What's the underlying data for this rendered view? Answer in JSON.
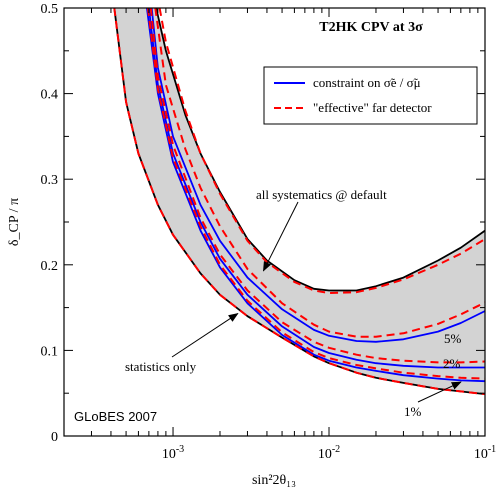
{
  "chart_data": {
    "type": "line",
    "title": "T2HK  CPV at 3σ",
    "xlabel": "sin²2θ₁₃",
    "ylabel": "δ_CP / π",
    "x_scale": "log",
    "xlim": [
      0.0002,
      0.1
    ],
    "ylim": [
      0,
      0.5
    ],
    "x_ticks": [
      {
        "value": 0.001,
        "base": "10",
        "exp": "-3"
      },
      {
        "value": 0.01,
        "base": "10",
        "exp": "-2"
      },
      {
        "value": 0.1,
        "base": "10",
        "exp": "-1"
      }
    ],
    "y_ticks": [
      {
        "value": 0,
        "label": "0"
      },
      {
        "value": 0.1,
        "label": "0.1"
      },
      {
        "value": 0.2,
        "label": "0.2"
      },
      {
        "value": 0.3,
        "label": "0.3"
      },
      {
        "value": 0.4,
        "label": "0.4"
      },
      {
        "value": 0.5,
        "label": "0.5"
      }
    ],
    "grid": false,
    "legend_position": "top-right",
    "legend": [
      {
        "label": "constraint on σ̃e / σ̃μ",
        "color": "#0000ff",
        "style": "solid"
      },
      {
        "label": "\"effective\" far detector",
        "color": "#ff0000",
        "style": "dashed"
      }
    ],
    "band": {
      "fill": "#d3d3d3",
      "upper_series": "all systematics @ default",
      "lower_series": "statistics only"
    },
    "series": [
      {
        "name": "all systematics @ default",
        "color": "#000000",
        "style": "solid",
        "x": [
          0.00078,
          0.0009,
          0.0012,
          0.0015,
          0.002,
          0.003,
          0.004,
          0.006,
          0.008,
          0.01,
          0.015,
          0.02,
          0.03,
          0.05,
          0.07,
          0.1
        ],
        "y": [
          0.5,
          0.45,
          0.375,
          0.33,
          0.285,
          0.23,
          0.205,
          0.182,
          0.172,
          0.17,
          0.17,
          0.175,
          0.185,
          0.205,
          0.22,
          0.24
        ]
      },
      {
        "name": "statistics only",
        "color": "#000000",
        "style": "solid",
        "x": [
          0.00042,
          0.0005,
          0.0006,
          0.0008,
          0.001,
          0.0015,
          0.002,
          0.003,
          0.005,
          0.008,
          0.01,
          0.015,
          0.02,
          0.03,
          0.05,
          0.1
        ],
        "y": [
          0.5,
          0.39,
          0.33,
          0.27,
          0.235,
          0.19,
          0.165,
          0.14,
          0.115,
          0.093,
          0.085,
          0.074,
          0.068,
          0.062,
          0.055,
          0.049
        ]
      },
      {
        "name": "constraint, 5%",
        "color": "#0000ff",
        "style": "solid",
        "x": [
          0.00073,
          0.0008,
          0.001,
          0.0015,
          0.002,
          0.003,
          0.005,
          0.008,
          0.01,
          0.015,
          0.02,
          0.03,
          0.05,
          0.07,
          0.1
        ],
        "y": [
          0.5,
          0.43,
          0.35,
          0.27,
          0.228,
          0.185,
          0.148,
          0.124,
          0.117,
          0.111,
          0.11,
          0.113,
          0.122,
          0.132,
          0.146
        ]
      },
      {
        "name": "constraint, 2%",
        "color": "#0000ff",
        "style": "solid",
        "x": [
          0.0007,
          0.0008,
          0.001,
          0.0015,
          0.002,
          0.003,
          0.005,
          0.008,
          0.01,
          0.015,
          0.02,
          0.03,
          0.05,
          0.07,
          0.1
        ],
        "y": [
          0.5,
          0.41,
          0.33,
          0.25,
          0.207,
          0.165,
          0.128,
          0.104,
          0.097,
          0.089,
          0.085,
          0.082,
          0.08,
          0.08,
          0.08
        ]
      },
      {
        "name": "constraint, 1%",
        "color": "#0000ff",
        "style": "solid",
        "x": [
          0.00068,
          0.0008,
          0.001,
          0.0015,
          0.002,
          0.003,
          0.005,
          0.008,
          0.01,
          0.015,
          0.02,
          0.03,
          0.05,
          0.07,
          0.1
        ],
        "y": [
          0.5,
          0.4,
          0.32,
          0.24,
          0.197,
          0.155,
          0.118,
          0.095,
          0.088,
          0.08,
          0.076,
          0.071,
          0.067,
          0.065,
          0.064
        ]
      },
      {
        "name": "effective far detector, default",
        "color": "#ff0000",
        "style": "dashed",
        "x": [
          0.00082,
          0.0009,
          0.0012,
          0.0015,
          0.002,
          0.003,
          0.004,
          0.006,
          0.008,
          0.01,
          0.015,
          0.02,
          0.03,
          0.05,
          0.07,
          0.1
        ],
        "y": [
          0.5,
          0.46,
          0.38,
          0.33,
          0.283,
          0.228,
          0.203,
          0.18,
          0.17,
          0.167,
          0.168,
          0.173,
          0.183,
          0.2,
          0.213,
          0.23
        ]
      },
      {
        "name": "effective far detector, statistics",
        "color": "#ff0000",
        "style": "dashed",
        "x": [
          0.00042,
          0.0005,
          0.0006,
          0.0008,
          0.001,
          0.0015,
          0.002,
          0.003,
          0.005,
          0.008,
          0.01,
          0.015,
          0.02,
          0.03,
          0.05,
          0.1
        ],
        "y": [
          0.5,
          0.39,
          0.33,
          0.27,
          0.235,
          0.19,
          0.165,
          0.14,
          0.115,
          0.093,
          0.085,
          0.074,
          0.068,
          0.062,
          0.055,
          0.049
        ]
      },
      {
        "name": "effective far detector, 5%",
        "color": "#ff0000",
        "style": "dashed",
        "x": [
          0.00077,
          0.0009,
          0.0012,
          0.0015,
          0.002,
          0.003,
          0.005,
          0.008,
          0.01,
          0.015,
          0.02,
          0.03,
          0.05,
          0.07,
          0.1
        ],
        "y": [
          0.5,
          0.41,
          0.335,
          0.29,
          0.245,
          0.195,
          0.155,
          0.13,
          0.122,
          0.116,
          0.116,
          0.12,
          0.131,
          0.142,
          0.156
        ]
      },
      {
        "name": "effective far detector, 2%",
        "color": "#ff0000",
        "style": "dashed",
        "x": [
          0.00072,
          0.0008,
          0.001,
          0.0015,
          0.002,
          0.003,
          0.005,
          0.008,
          0.01,
          0.015,
          0.02,
          0.03,
          0.05,
          0.07,
          0.1
        ],
        "y": [
          0.5,
          0.42,
          0.34,
          0.255,
          0.212,
          0.17,
          0.133,
          0.11,
          0.103,
          0.095,
          0.091,
          0.088,
          0.086,
          0.086,
          0.087
        ]
      },
      {
        "name": "effective far detector, 1%",
        "color": "#ff0000",
        "style": "dashed",
        "x": [
          0.00069,
          0.0008,
          0.001,
          0.0015,
          0.002,
          0.003,
          0.005,
          0.008,
          0.01,
          0.015,
          0.02,
          0.03,
          0.05,
          0.07,
          0.1
        ],
        "y": [
          0.5,
          0.405,
          0.325,
          0.245,
          0.2,
          0.158,
          0.121,
          0.098,
          0.091,
          0.083,
          0.079,
          0.074,
          0.07,
          0.068,
          0.067
        ]
      }
    ],
    "annotations": [
      {
        "text": "all systematics @ default",
        "arrow_to": {
          "x": 0.0038,
          "y": 0.193
        }
      },
      {
        "text": "statistics only",
        "arrow_to": {
          "x": 0.0026,
          "y": 0.143
        }
      },
      {
        "text": "5%"
      },
      {
        "text": "2%"
      },
      {
        "text": "1%",
        "arrow_to": {
          "x": 0.07,
          "y": 0.063
        }
      },
      {
        "text": "GLoBES 2007"
      }
    ]
  }
}
